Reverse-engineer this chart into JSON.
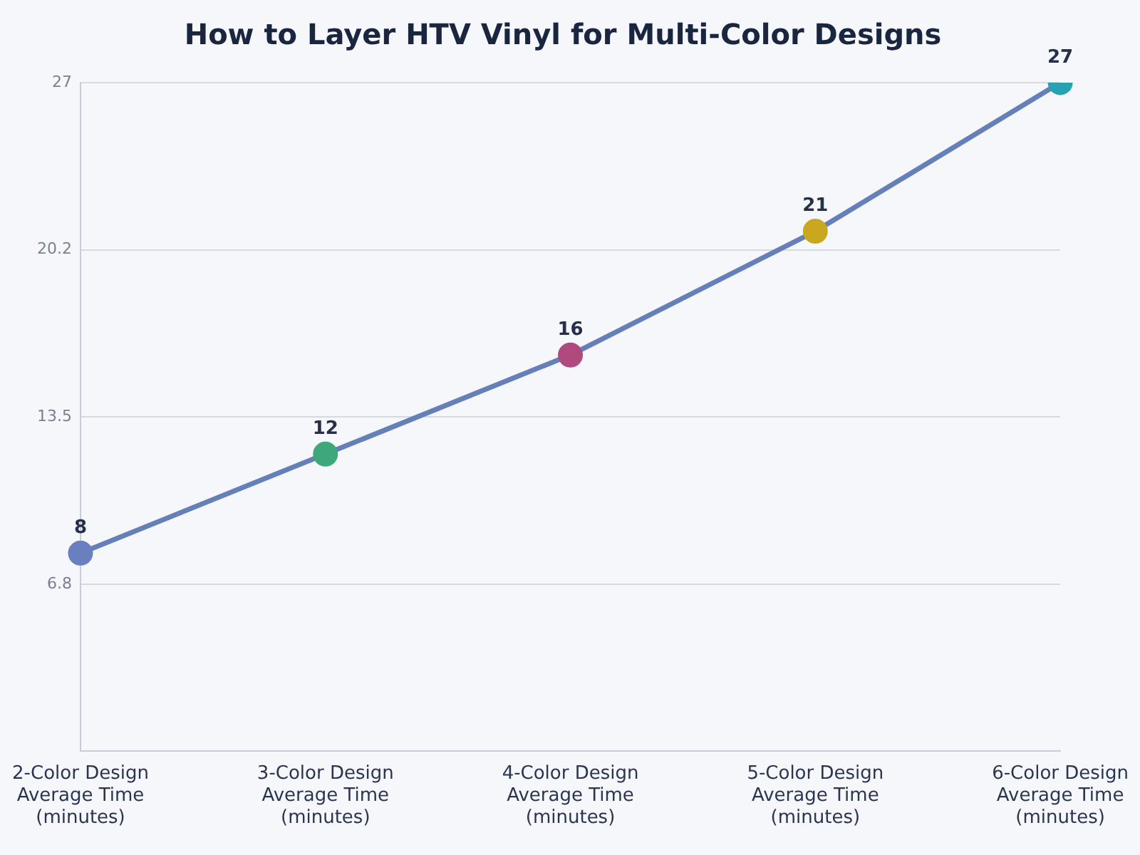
{
  "chart_data": {
    "type": "line",
    "title": "How to Layer HTV Vinyl for Multi-Color Designs",
    "categories": [
      "2-Color Design Average Time (minutes)",
      "3-Color Design Average Time (minutes)",
      "4-Color Design Average Time (minutes)",
      "5-Color Design Average Time (minutes)",
      "6-Color Design Average Time (minutes)"
    ],
    "values": [
      8,
      12,
      16,
      21,
      27
    ],
    "color": "#6580b8",
    "colors": [
      "#6a7fbf",
      "#3ea87a",
      "#b04a7e",
      "#c9a820",
      "#26a2b2"
    ],
    "ylim": [
      0,
      27
    ],
    "yticks": [
      {
        "value": 6.75,
        "label": "6.8"
      },
      13.5,
      {
        "value": 20.25,
        "label": "20.2"
      },
      27
    ],
    "grid": "y",
    "marker": "circle",
    "data_labels": true,
    "legend": false
  }
}
